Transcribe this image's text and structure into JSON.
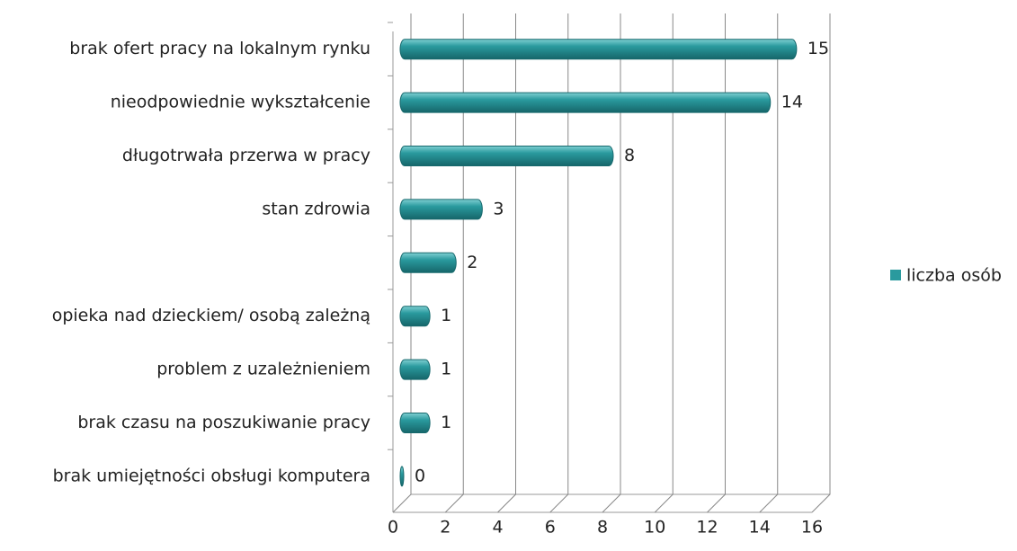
{
  "chart_data": {
    "type": "bar",
    "orientation": "horizontal",
    "categories": [
      "brak ofert pracy na lokalnym rynku",
      "nieodpowiednie wykształcenie",
      "długotrwała przerwa w pracy",
      "stan zdrowia",
      null,
      "opieka nad dzieckiem/ osobą zależną",
      "problem z uzależnieniem",
      "brak czasu na poszukiwanie pracy",
      "brak umiejętności obsługi komputera"
    ],
    "series": [
      {
        "name": "liczba osób",
        "color": "#2a9a9e",
        "values": [
          15,
          14,
          8,
          3,
          2,
          1,
          1,
          1,
          0
        ]
      }
    ],
    "xlim": [
      0,
      16
    ],
    "xticks": [
      0,
      2,
      4,
      6,
      8,
      10,
      12,
      14,
      16
    ],
    "grid": true,
    "legend": "right"
  }
}
